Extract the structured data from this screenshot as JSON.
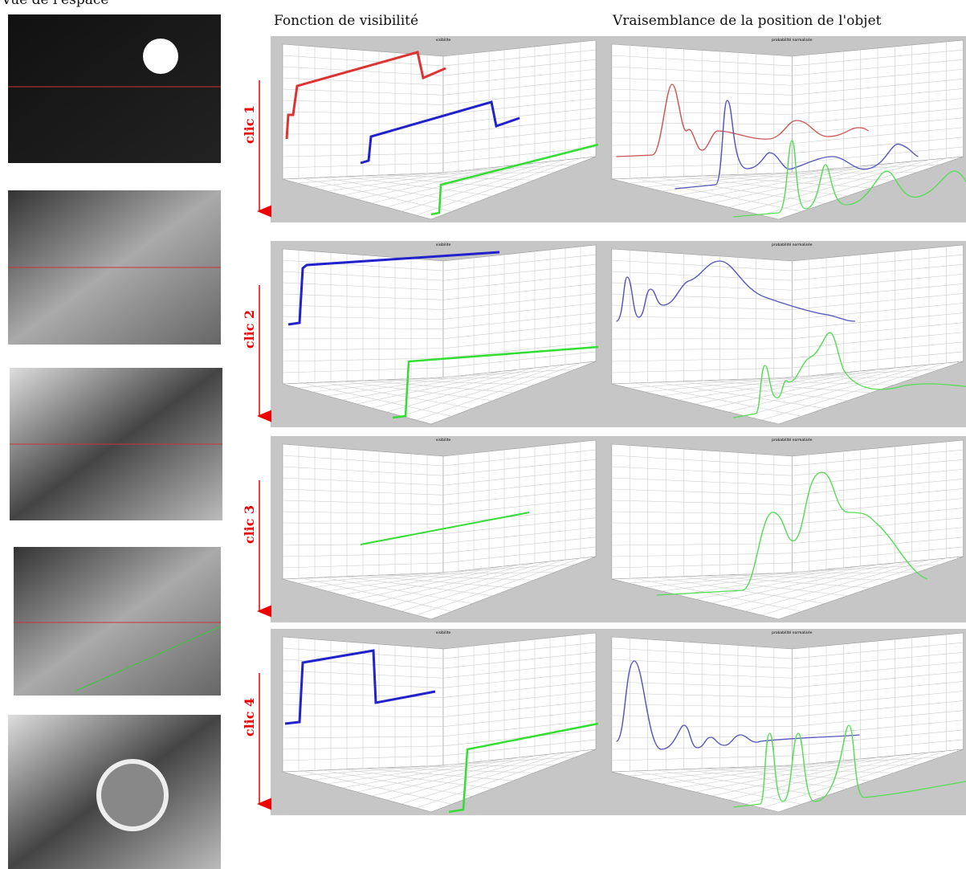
{
  "header": {
    "camera_view": "Vue de l'espace"
  },
  "columns": [
    "Fonction de visibilité",
    "Vraisemblance de la position de l'objet"
  ],
  "panel_titles": {
    "visibility": "visibilite",
    "likelihood": "probabilité normalisée"
  },
  "clicks": [
    "clic 1",
    "clic 2",
    "clic 3",
    "clic 4"
  ]
}
